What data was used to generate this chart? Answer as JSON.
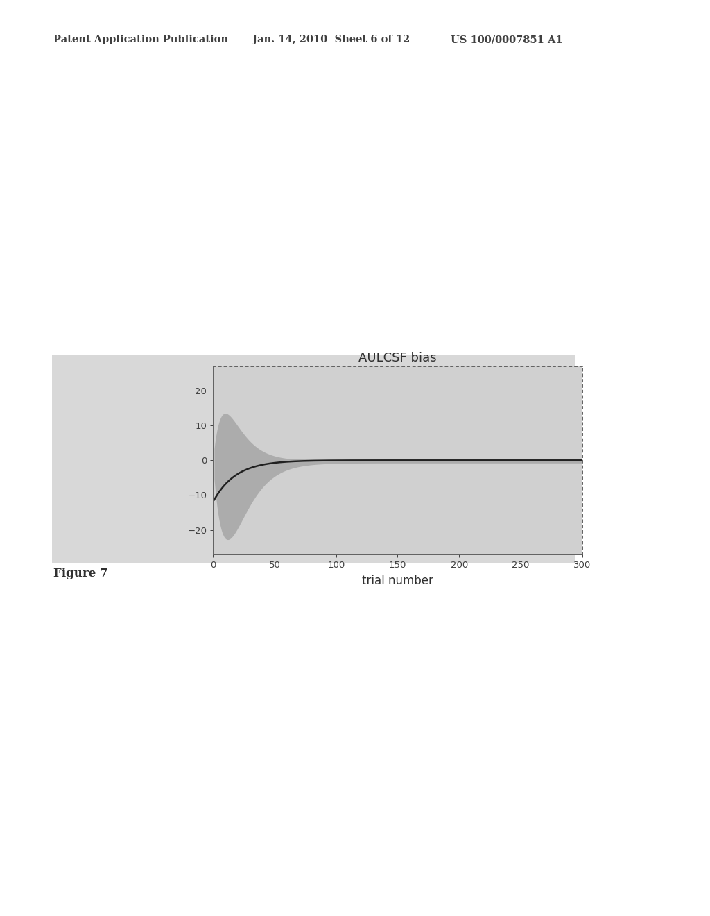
{
  "title": "AULCSF bias",
  "xlabel": "trial number",
  "xlim": [
    0,
    300
  ],
  "ylim": [
    -27,
    27
  ],
  "yticks": [
    -20,
    -10,
    0,
    10,
    20
  ],
  "xticks": [
    0,
    50,
    100,
    150,
    200,
    250,
    300
  ],
  "header_left": "Patent Application Publication",
  "header_center": "Jan. 14, 2010  Sheet 6 of 12",
  "header_right": "US 100/0007851 A1",
  "figure_label": "Figure 7",
  "outer_bg": "#ffffff",
  "gray_box_color": "#d8d8d8",
  "plot_bg_color": "#d0d0d0",
  "shade_color": "#a8a8a8",
  "line_color": "#202020",
  "header_color": "#404040",
  "figure_label_color": "#303030"
}
